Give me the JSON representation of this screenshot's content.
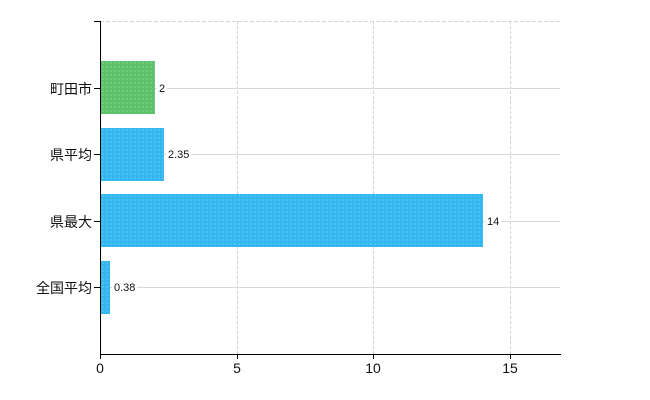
{
  "chart_data": {
    "type": "bar",
    "orientation": "horizontal",
    "title": "",
    "xlabel": "",
    "ylabel": "",
    "categories": [
      "町田市",
      "県平均",
      "県最大",
      "全国平均"
    ],
    "values": [
      2,
      2.35,
      14,
      0.38
    ],
    "value_labels": [
      "2",
      "2.35",
      "14",
      "0.38"
    ],
    "bar_colors": [
      "#5ec16b",
      "#33b7f0",
      "#33b7f0",
      "#33b7f0"
    ],
    "x_ticks": [
      0,
      5,
      10,
      15
    ],
    "x_tick_labels": [
      "0",
      "5",
      "10",
      "15"
    ],
    "xlim": [
      0,
      16.8
    ],
    "grid": true,
    "legend_position": "none"
  },
  "colors": {
    "horizontal_gridline": "#d4dcd4",
    "vertical_gridline": "#ccd6cc",
    "top_border": "#d9d3d7",
    "axis": "#000000",
    "text": "#111111",
    "green_bar": "#5ec16b",
    "blue_bar": "#33b7f0"
  }
}
